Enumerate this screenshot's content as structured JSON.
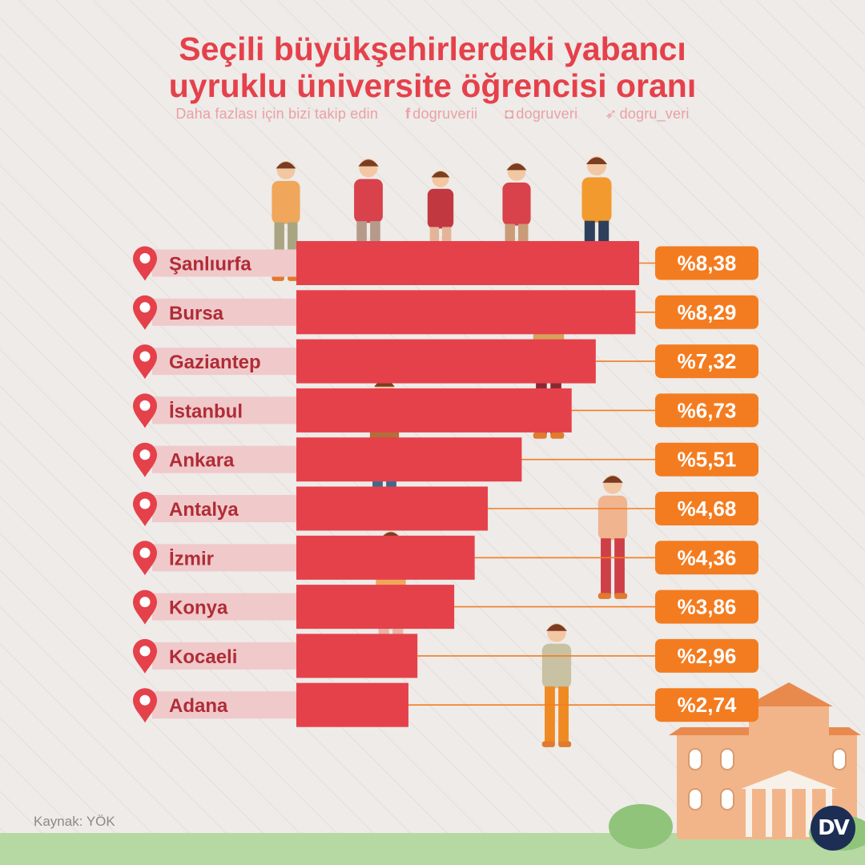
{
  "header": {
    "title_line1": "Seçili büyükşehirlerdeki yabancı",
    "title_line2": "uyruklu üniversite öğrencisi oranı",
    "follow_text": "Daha fazlası için bizi takip edin",
    "facebook": "dogruverii",
    "instagram": "dogruveri",
    "twitter": "dogru_veri"
  },
  "footer": {
    "source": "Kaynak: YÖK",
    "logo_text": "DV"
  },
  "icons": [
    "location-pin-icon",
    "facebook-icon",
    "instagram-icon",
    "twitter-icon"
  ],
  "colors": {
    "title": "#e5414b",
    "bar": "#e5414b",
    "label_band": "#f0c9cb",
    "value_box": "#f47c20",
    "background": "#eeebe8"
  },
  "chart_data": {
    "type": "bar",
    "orientation": "horizontal",
    "categories": [
      "Şanlıurfa",
      "Bursa",
      "Gaziantep",
      "İstanbul",
      "Ankara",
      "Antalya",
      "İzmir",
      "Konya",
      "Kocaeli",
      "Adana"
    ],
    "values": [
      8.38,
      8.29,
      7.32,
      6.73,
      5.51,
      4.68,
      4.36,
      3.86,
      2.96,
      2.74
    ],
    "value_labels": [
      "%8,38",
      "%8,29",
      "%7,32",
      "%6,73",
      "%5,51",
      "%4,68",
      "%4,36",
      "%3,86",
      "%2,96",
      "%2,74"
    ],
    "xlim": [
      0,
      8.38
    ],
    "grid": false,
    "legend": "none"
  }
}
